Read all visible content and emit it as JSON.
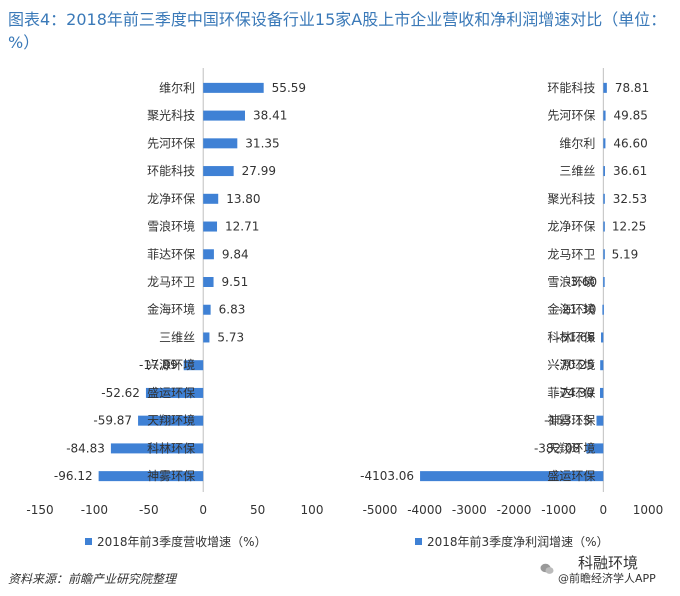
{
  "title": "图表4：2018年前三季度中国环保设备行业15家A股上市企业营收和净利润增速对比（单位：%）",
  "source": "资料来源：前瞻产业研究院整理",
  "brand": {
    "wechat": "科融环境",
    "app": "@前瞻经济学人APP"
  },
  "colors": {
    "bar": "#3f81d5",
    "title": "#3a79b8",
    "axis": "#bfbfbf",
    "label": "#333333"
  },
  "chart_data": [
    {
      "type": "bar",
      "orientation": "horizontal",
      "categories": [
        "维尔利",
        "聚光科技",
        "先河环保",
        "环能科技",
        "龙净环保",
        "雪浪环境",
        "菲达环保",
        "龙马环卫",
        "金海环境",
        "三维丝",
        "兴源环境",
        "盛运环保",
        "天翔环境",
        "科林环保",
        "神雾环保"
      ],
      "values": [
        55.59,
        38.41,
        31.35,
        27.99,
        13.8,
        12.71,
        9.84,
        9.51,
        6.83,
        5.73,
        -17.89,
        -52.62,
        -59.87,
        -84.83,
        -96.12
      ],
      "value_labels": [
        "55.59",
        "38.41",
        "31.35",
        "27.99",
        "13.80",
        "12.71",
        "9.84",
        "9.51",
        "6.83",
        "5.73",
        "-17.89",
        "-52.62",
        "-59.87",
        "-84.83",
        "-96.12"
      ],
      "xlim": [
        -150,
        100
      ],
      "x_ticks": [
        -150,
        -100,
        -50,
        0,
        50,
        100
      ],
      "legend": "2018年前3季度营收增速（%）",
      "legend_position": "bottom"
    },
    {
      "type": "bar",
      "orientation": "horizontal",
      "categories": [
        "环能科技",
        "先河环保",
        "维尔利",
        "三维丝",
        "聚光科技",
        "龙净环保",
        "龙马环卫",
        "雪浪环境",
        "金海环境",
        "科林环保",
        "兴源环境",
        "菲达环保",
        "神雾环保",
        "天翔环境",
        "盛运环保"
      ],
      "values": [
        78.81,
        49.85,
        46.6,
        36.61,
        32.53,
        12.25,
        5.19,
        -3.6,
        -21.3,
        -51.66,
        -70.25,
        -74.3,
        -153.13,
        -382.08,
        -4103.06
      ],
      "value_labels": [
        "78.81",
        "49.85",
        "46.60",
        "36.61",
        "32.53",
        "12.25",
        "5.19",
        "-3.60",
        "-21.30",
        "-51.66",
        "-70.25",
        "-74.30",
        "-153.13",
        "-382.08",
        "-4103.06"
      ],
      "xlim": [
        -5000,
        1000
      ],
      "x_ticks": [
        -5000,
        -4000,
        -3000,
        -2000,
        -1000,
        0,
        1000
      ],
      "legend": "2018年前3季度净利润增速（%）",
      "legend_position": "bottom"
    }
  ]
}
